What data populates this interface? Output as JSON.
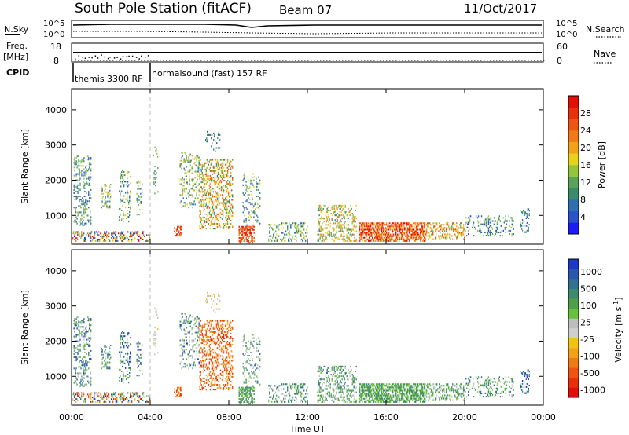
{
  "header": {
    "station": "South Pole Station (fitACF)",
    "beam": "Beam 07",
    "date": "11/Oct/2017"
  },
  "top_panels": {
    "nsky_label": "N.Sky",
    "nsearch_label": "N.Search",
    "noise_ticks": [
      "10^5",
      "10^0"
    ],
    "freq_label": "Freq.",
    "freq_unit": "[MHz]",
    "freq_ticks": [
      "18",
      "8"
    ],
    "nave_label": "Nave",
    "nave_ticks": [
      "60",
      "0"
    ],
    "cpid_label": "CPID",
    "cpid_modes": [
      {
        "text": "themis 3300 RF",
        "start_hour": 0
      },
      {
        "text": "normalsound (fast) 157 RF",
        "start_hour": 4
      }
    ]
  },
  "chart_data": [
    {
      "type": "heatmap",
      "title": "",
      "ylabel": "Slant Range [km]",
      "xlabel": "",
      "x_range_hours": [
        0,
        24
      ],
      "ylim": [
        180,
        4600
      ],
      "yticks": [
        1000,
        2000,
        3000,
        4000
      ],
      "colorbar": {
        "label": "Power [dB]",
        "range": [
          0,
          32
        ],
        "ticks": [
          "4",
          "8",
          "12",
          "16",
          "20",
          "24",
          "28"
        ],
        "colors": [
          "#1c1cf5",
          "#2a52c9",
          "#2f6fb0",
          "#3b8a6b",
          "#5aa25a",
          "#93c43a",
          "#e6d21e",
          "#f2a21a",
          "#f07a16",
          "#ee5512",
          "#e8300c",
          "#e01006"
        ]
      }
    },
    {
      "type": "heatmap",
      "title": "",
      "ylabel": "Slant Range [km]",
      "xlabel": "Time UT",
      "x_range_hours": [
        0,
        24
      ],
      "ylim": [
        180,
        4600
      ],
      "yticks": [
        1000,
        2000,
        3000,
        4000
      ],
      "colorbar": {
        "label": "Velocity [m s^-1]",
        "ticks": [
          "1000",
          "500",
          "100",
          "25",
          "-25",
          "-100",
          "-500",
          "-1000"
        ],
        "colors": [
          "#1c38c4",
          "#2a56b0",
          "#336f8f",
          "#3f8a6c",
          "#4f9e4c",
          "#66c23a",
          "#bdbdbd",
          "#cfcfcf",
          "#f2c21a",
          "#f2a21a",
          "#f07a16",
          "#ee5512",
          "#e8300c",
          "#e01006"
        ]
      }
    }
  ],
  "time_axis": {
    "ticks": [
      "00:00",
      "04:00",
      "08:00",
      "12:00",
      "16:00",
      "20:00",
      "00:00"
    ],
    "label": "Time UT"
  }
}
